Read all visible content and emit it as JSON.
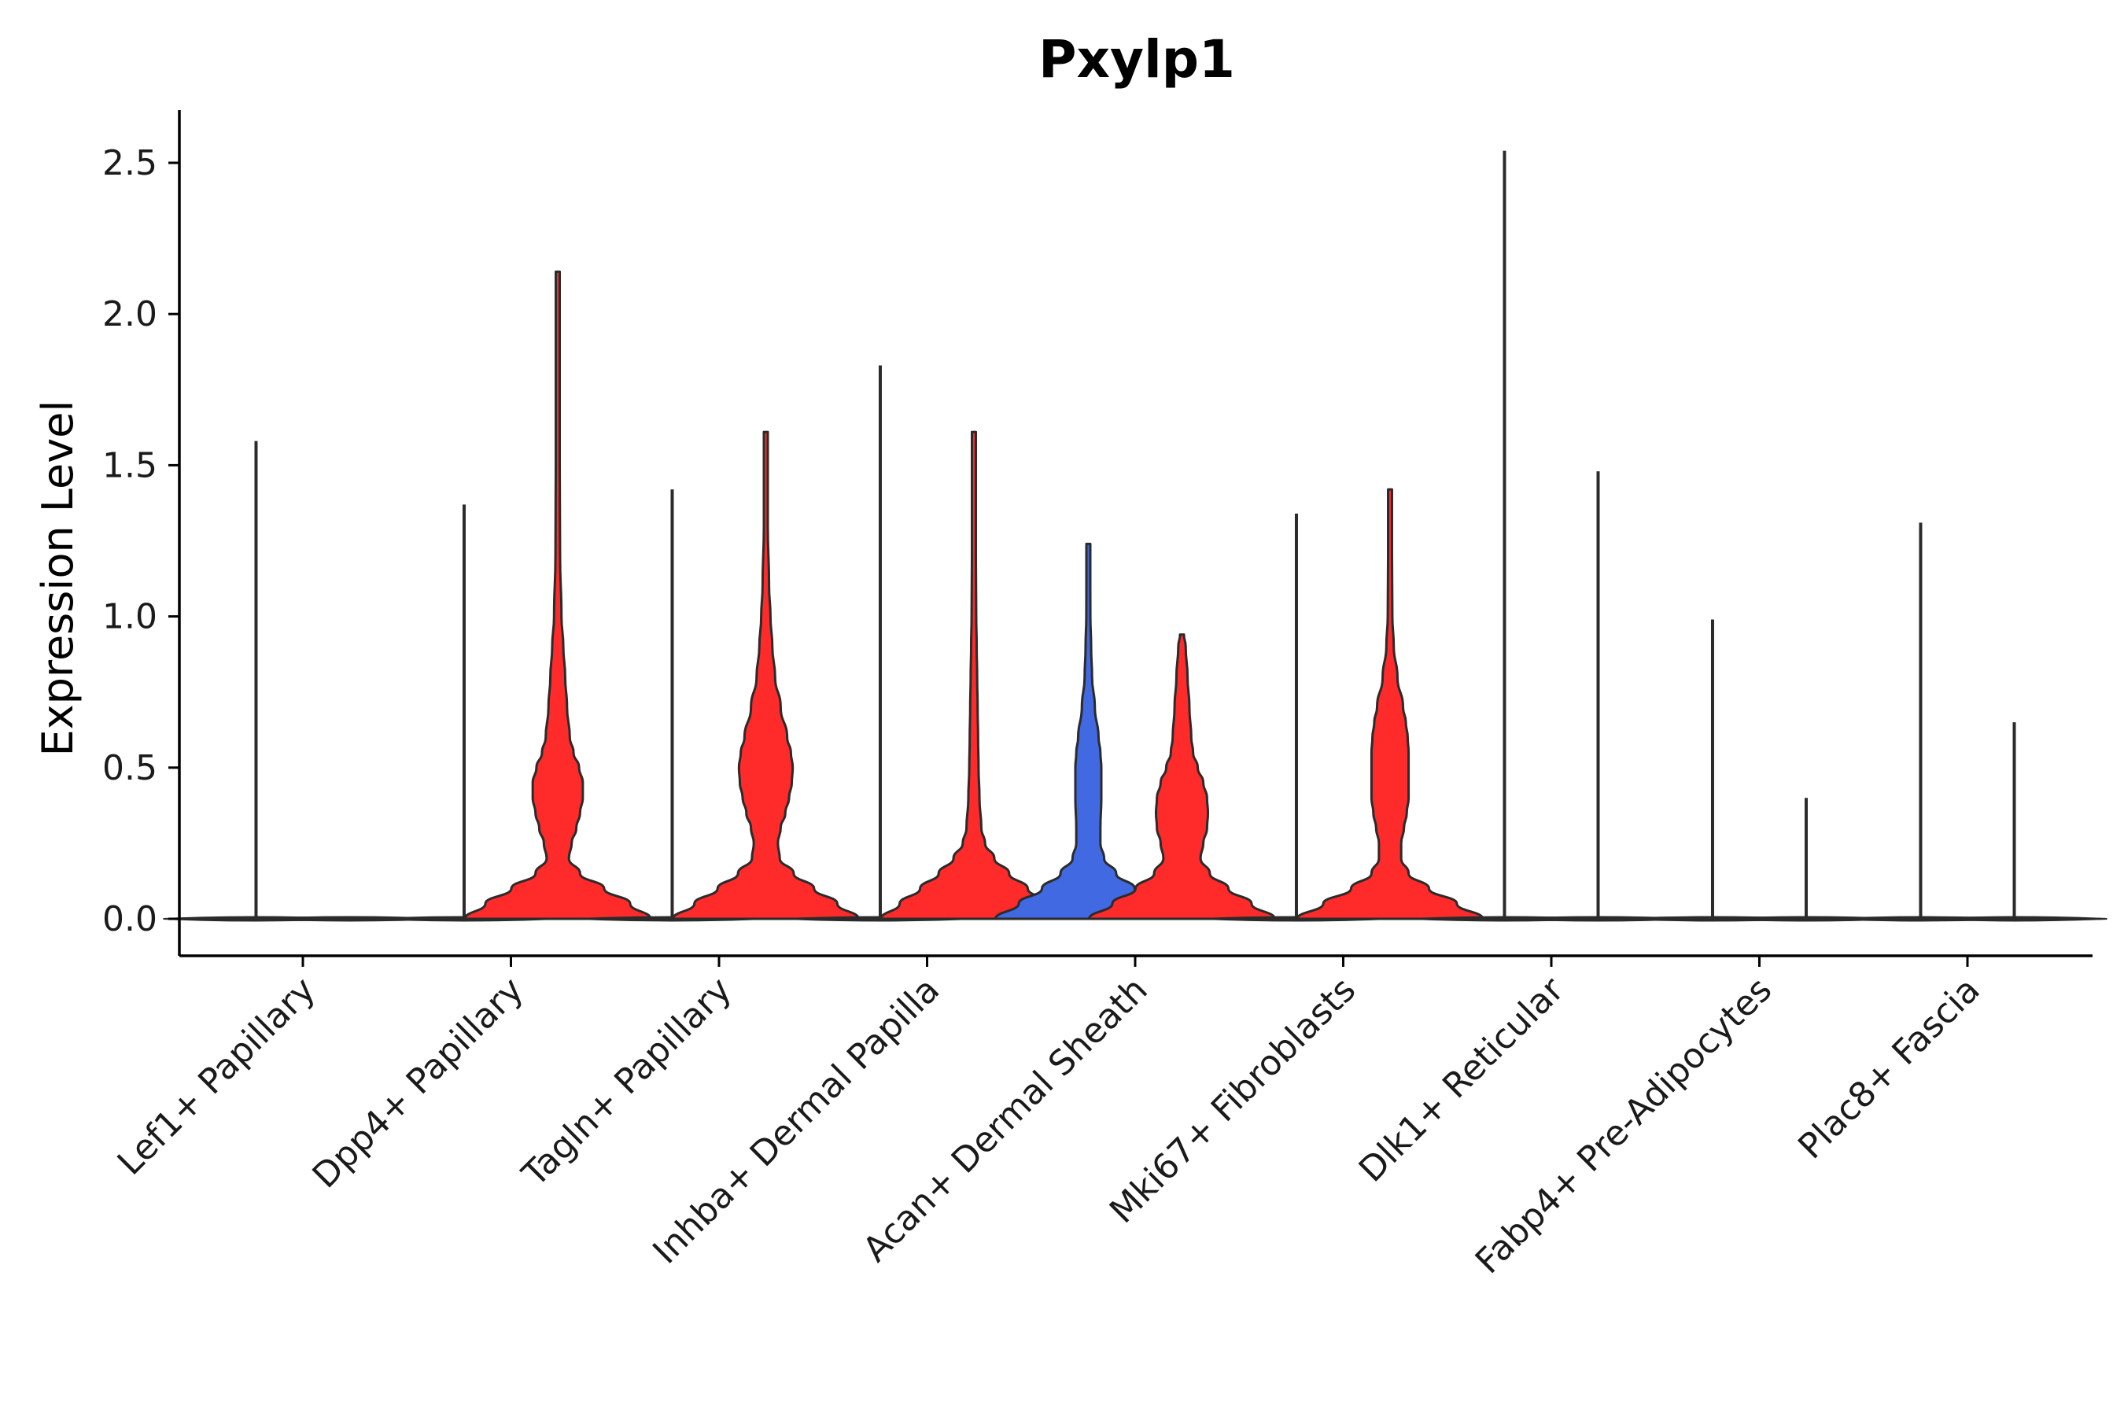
{
  "chart_data": {
    "type": "violin",
    "title": "Pxylp1",
    "xlabel": "",
    "ylabel": "Expression Level",
    "ylim": [
      -0.12,
      2.66
    ],
    "yticks": [
      0.0,
      0.5,
      1.0,
      1.5,
      2.0,
      2.5
    ],
    "ytick_labels": [
      "0.0",
      "0.5",
      "1.0",
      "1.5",
      "2.0",
      "2.5"
    ],
    "categories": [
      "Lef1+ Papillary",
      "Dpp4+ Papillary",
      "Tagln+ Papillary",
      "Inhba+ Dermal Papilla",
      "Acan+ Dermal Sheath",
      "Mki67+ Fibroblasts",
      "Dlk1+ Reticular",
      "Fabp4+ Pre-Adipocytes",
      "Plac8+ Fascia"
    ],
    "colors": {
      "other": "#ff2a2a",
      "highlight": "#4169e1",
      "zero": "#2b2b2b"
    },
    "violins": [
      {
        "category": "Lef1+ Papillary",
        "offset": -0.225,
        "color": "zero",
        "max": 1.58,
        "profile": []
      },
      {
        "category": "Lef1+ Papillary",
        "offset": 0.225,
        "color": "zero",
        "max": 0.0,
        "profile": []
      },
      {
        "category": "Dpp4+ Papillary",
        "offset": -0.225,
        "color": "zero",
        "max": 1.37,
        "profile": []
      },
      {
        "category": "Dpp4+ Papillary",
        "offset": 0.225,
        "color": "other",
        "max": 2.14,
        "profile": [
          [
            0,
            1
          ],
          [
            0.05,
            0.78
          ],
          [
            0.1,
            0.5
          ],
          [
            0.15,
            0.24
          ],
          [
            0.2,
            0.12
          ],
          [
            0.25,
            0.15
          ],
          [
            0.3,
            0.2
          ],
          [
            0.35,
            0.24
          ],
          [
            0.4,
            0.27
          ],
          [
            0.45,
            0.27
          ],
          [
            0.5,
            0.23
          ],
          [
            0.55,
            0.17
          ],
          [
            0.6,
            0.13
          ],
          [
            0.7,
            0.1
          ],
          [
            0.8,
            0.08
          ],
          [
            0.9,
            0.06
          ],
          [
            1.0,
            0.04
          ],
          [
            1.2,
            0.025
          ],
          [
            1.5,
            0.015
          ],
          [
            1.8,
            0.01
          ],
          [
            2.14,
            0.006
          ]
        ]
      },
      {
        "category": "Tagln+ Papillary",
        "offset": -0.225,
        "color": "zero",
        "max": 1.42,
        "profile": []
      },
      {
        "category": "Tagln+ Papillary",
        "offset": 0.225,
        "color": "other",
        "max": 1.61,
        "profile": [
          [
            0,
            1
          ],
          [
            0.05,
            0.77
          ],
          [
            0.1,
            0.52
          ],
          [
            0.15,
            0.3
          ],
          [
            0.2,
            0.15
          ],
          [
            0.25,
            0.13
          ],
          [
            0.3,
            0.16
          ],
          [
            0.35,
            0.21
          ],
          [
            0.4,
            0.25
          ],
          [
            0.45,
            0.28
          ],
          [
            0.5,
            0.29
          ],
          [
            0.55,
            0.27
          ],
          [
            0.6,
            0.23
          ],
          [
            0.7,
            0.16
          ],
          [
            0.8,
            0.1
          ],
          [
            0.9,
            0.07
          ],
          [
            1.0,
            0.05
          ],
          [
            1.1,
            0.035
          ],
          [
            1.3,
            0.02
          ],
          [
            1.45,
            0.013
          ],
          [
            1.61,
            0.006
          ]
        ]
      },
      {
        "category": "Inhba+ Dermal Papilla",
        "offset": -0.225,
        "color": "zero",
        "max": 1.83,
        "profile": []
      },
      {
        "category": "Inhba+ Dermal Papilla",
        "offset": 0.225,
        "color": "other",
        "max": 1.61,
        "profile": [
          [
            0,
            1
          ],
          [
            0.05,
            0.8
          ],
          [
            0.1,
            0.58
          ],
          [
            0.15,
            0.38
          ],
          [
            0.2,
            0.22
          ],
          [
            0.25,
            0.12
          ],
          [
            0.3,
            0.08
          ],
          [
            0.4,
            0.06
          ],
          [
            0.5,
            0.05
          ],
          [
            0.6,
            0.045
          ],
          [
            0.7,
            0.04
          ],
          [
            0.8,
            0.035
          ],
          [
            0.9,
            0.03
          ],
          [
            1.0,
            0.025
          ],
          [
            1.2,
            0.018
          ],
          [
            1.4,
            0.012
          ],
          [
            1.61,
            0.006
          ]
        ]
      },
      {
        "category": "Acan+ Dermal Sheath",
        "offset": -0.225,
        "color": "highlight",
        "max": 1.24,
        "profile": [
          [
            0,
            1
          ],
          [
            0.05,
            0.75
          ],
          [
            0.1,
            0.5
          ],
          [
            0.15,
            0.3
          ],
          [
            0.2,
            0.17
          ],
          [
            0.25,
            0.13
          ],
          [
            0.3,
            0.13
          ],
          [
            0.4,
            0.14
          ],
          [
            0.5,
            0.14
          ],
          [
            0.55,
            0.13
          ],
          [
            0.6,
            0.11
          ],
          [
            0.7,
            0.07
          ],
          [
            0.8,
            0.04
          ],
          [
            0.9,
            0.03
          ],
          [
            1.0,
            0.022
          ],
          [
            1.1,
            0.016
          ],
          [
            1.24,
            0.008
          ]
        ]
      },
      {
        "category": "Acan+ Dermal Sheath",
        "offset": 0.225,
        "color": "other",
        "max": 0.94,
        "profile": [
          [
            0,
            1
          ],
          [
            0.05,
            0.75
          ],
          [
            0.1,
            0.5
          ],
          [
            0.15,
            0.3
          ],
          [
            0.2,
            0.2
          ],
          [
            0.25,
            0.23
          ],
          [
            0.3,
            0.27
          ],
          [
            0.35,
            0.28
          ],
          [
            0.4,
            0.27
          ],
          [
            0.45,
            0.23
          ],
          [
            0.5,
            0.17
          ],
          [
            0.55,
            0.12
          ],
          [
            0.6,
            0.1
          ],
          [
            0.7,
            0.08
          ],
          [
            0.8,
            0.06
          ],
          [
            0.9,
            0.04
          ],
          [
            0.94,
            0.02
          ]
        ]
      },
      {
        "category": "Mki67+ Fibroblasts",
        "offset": -0.225,
        "color": "zero",
        "max": 1.34,
        "profile": []
      },
      {
        "category": "Mki67+ Fibroblasts",
        "offset": 0.225,
        "color": "other",
        "max": 1.42,
        "profile": [
          [
            0,
            1
          ],
          [
            0.05,
            0.72
          ],
          [
            0.1,
            0.42
          ],
          [
            0.15,
            0.2
          ],
          [
            0.2,
            0.12
          ],
          [
            0.25,
            0.12
          ],
          [
            0.3,
            0.15
          ],
          [
            0.35,
            0.18
          ],
          [
            0.4,
            0.2
          ],
          [
            0.45,
            0.2
          ],
          [
            0.5,
            0.2
          ],
          [
            0.55,
            0.2
          ],
          [
            0.6,
            0.19
          ],
          [
            0.65,
            0.17
          ],
          [
            0.7,
            0.14
          ],
          [
            0.8,
            0.08
          ],
          [
            0.9,
            0.04
          ],
          [
            1.0,
            0.025
          ],
          [
            1.2,
            0.015
          ],
          [
            1.42,
            0.006
          ]
        ]
      },
      {
        "category": "Dlk1+ Reticular",
        "offset": -0.225,
        "color": "zero",
        "max": 2.54,
        "profile": []
      },
      {
        "category": "Dlk1+ Reticular",
        "offset": 0.225,
        "color": "zero",
        "max": 1.48,
        "profile": []
      },
      {
        "category": "Fabp4+ Pre-Adipocytes",
        "offset": -0.225,
        "color": "zero",
        "max": 0.99,
        "profile": []
      },
      {
        "category": "Fabp4+ Pre-Adipocytes",
        "offset": 0.225,
        "color": "zero",
        "max": 0.4,
        "profile": []
      },
      {
        "category": "Plac8+ Fascia",
        "offset": -0.225,
        "color": "zero",
        "max": 1.31,
        "profile": []
      },
      {
        "category": "Plac8+ Fascia",
        "offset": 0.225,
        "color": "zero",
        "max": 0.65,
        "profile": []
      }
    ]
  }
}
